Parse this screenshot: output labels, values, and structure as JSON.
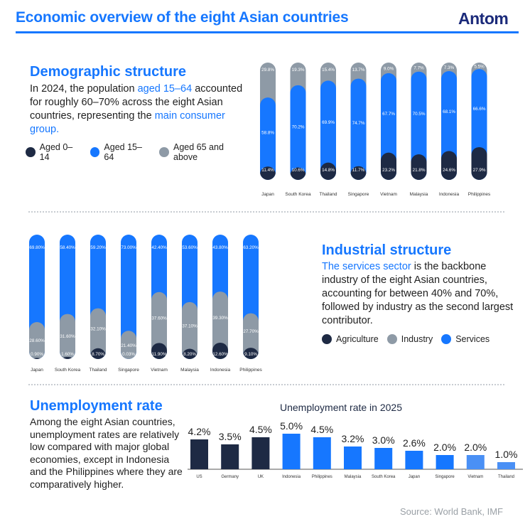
{
  "header": {
    "title": "Economic overview of the eight Asian countries",
    "logo_text": "Antom"
  },
  "colors": {
    "accent": "#1677ff",
    "dark": "#1e2a44",
    "grey": "#8e9aa6",
    "light_blue": "#4a90f5"
  },
  "demographic": {
    "heading": "Demographic structure",
    "text_parts": [
      "In 2024, the population ",
      "aged 15–64",
      " accounted for roughly 60–70% across the eight Asian countries, representing the ",
      "main consumer group."
    ],
    "legend": [
      "Aged 0–14",
      "Aged 15–64",
      "Aged 65 and above"
    ]
  },
  "industrial": {
    "heading": "Industrial structure",
    "text_parts": [
      "The services sector",
      " is the backbone industry of the eight Asian countries, accounting for between 40% and 70%, followed by industry as the second largest contributor."
    ],
    "legend": [
      "Agriculture",
      "Industry",
      "Services"
    ]
  },
  "unemployment": {
    "heading": "Unemployment rate",
    "text": "Among the eight Asian countries, unemployment rates are relatively low compared with major global economies, except in Indonesia and the Philippines where they are comparatively higher."
  },
  "source": "Source: World Bank, IMF",
  "chart_data": [
    {
      "type": "bar",
      "stacked": true,
      "title": "Demographic structure",
      "categories": [
        "Japan",
        "South Korea",
        "Thailand",
        "Singapore",
        "Vietnam",
        "Malaysia",
        "Indonesia",
        "Philippines"
      ],
      "series": [
        {
          "name": "Aged 0–14",
          "values": [
            11.4,
            10.6,
            14.8,
            11.7,
            23.2,
            21.8,
            24.6,
            27.9
          ],
          "labels": [
            "11.4%",
            "10.6%",
            "14.8%",
            "11.7%",
            "23.2%",
            "21.8%",
            "24.6%",
            "27.9%"
          ]
        },
        {
          "name": "Aged 15–64",
          "values": [
            58.8,
            70.2,
            69.9,
            74.7,
            67.7,
            70.5,
            68.1,
            66.6
          ],
          "labels": [
            "58.8%",
            "70.2%",
            "69.9%",
            "74.7%",
            "67.7%",
            "70.5%",
            "68.1%",
            "66.6%"
          ]
        },
        {
          "name": "Aged 65 and above",
          "values": [
            29.8,
            19.3,
            15.4,
            13.7,
            9.0,
            7.7,
            7.3,
            5.5
          ],
          "labels": [
            "29.8%",
            "19.3%",
            "15.4%",
            "13.7%",
            "9.0%",
            "7.7%",
            "7.3%",
            "5.5%"
          ]
        }
      ],
      "ylim": [
        0,
        100
      ]
    },
    {
      "type": "bar",
      "stacked": true,
      "title": "Industrial structure",
      "categories": [
        "Japan",
        "South Korea",
        "Thailand",
        "Singapore",
        "Vietnam",
        "Malaysia",
        "Indonesia",
        "Philippines"
      ],
      "series": [
        {
          "name": "Agriculture",
          "values": [
            0.9,
            1.6,
            8.7,
            0.03,
            11.9,
            8.2,
            12.6,
            9.1
          ],
          "labels": [
            "0.90%",
            "1.60%",
            "8.70%",
            "0.03%",
            "11.90%",
            "8.20%",
            "12.60%",
            "9.10%"
          ]
        },
        {
          "name": "Industry",
          "values": [
            28.6,
            31.6,
            32.1,
            21.4,
            37.6,
            37.1,
            39.3,
            27.7
          ],
          "labels": [
            "28.60%",
            "31.60%",
            "32.10%",
            "21.40%",
            "37.60%",
            "37.10%",
            "39.30%",
            "27.70%"
          ]
        },
        {
          "name": "Services",
          "values": [
            69.8,
            58.4,
            59.2,
            73.0,
            42.4,
            53.6,
            43.8,
            63.2
          ],
          "labels": [
            "69.80%",
            "58.40%",
            "59.20%",
            "73.00%",
            "42.40%",
            "53.60%",
            "43.80%",
            "63.20%"
          ]
        }
      ],
      "ylim": [
        0,
        100
      ]
    },
    {
      "type": "bar",
      "title": "Unemployment rate in 2025",
      "categories": [
        "US",
        "Germany",
        "UK",
        "Indonesia",
        "Philippines",
        "Malaysia",
        "South Korea",
        "Japan",
        "Singapore",
        "Vietnam",
        "Thailand"
      ],
      "values": [
        4.2,
        3.5,
        4.5,
        5.0,
        4.5,
        3.2,
        3.0,
        2.6,
        2.0,
        2.0,
        1.0
      ],
      "labels": [
        "4.2%",
        "3.5%",
        "4.5%",
        "5.0%",
        "4.5%",
        "3.2%",
        "3.0%",
        "2.6%",
        "2.0%",
        "2.0%",
        "1.0%"
      ],
      "groups": [
        "global",
        "global",
        "global",
        "asia",
        "asia",
        "asia",
        "asia",
        "asia",
        "asia",
        "asia",
        "asia"
      ],
      "ylim": [
        0,
        5.5
      ]
    }
  ]
}
